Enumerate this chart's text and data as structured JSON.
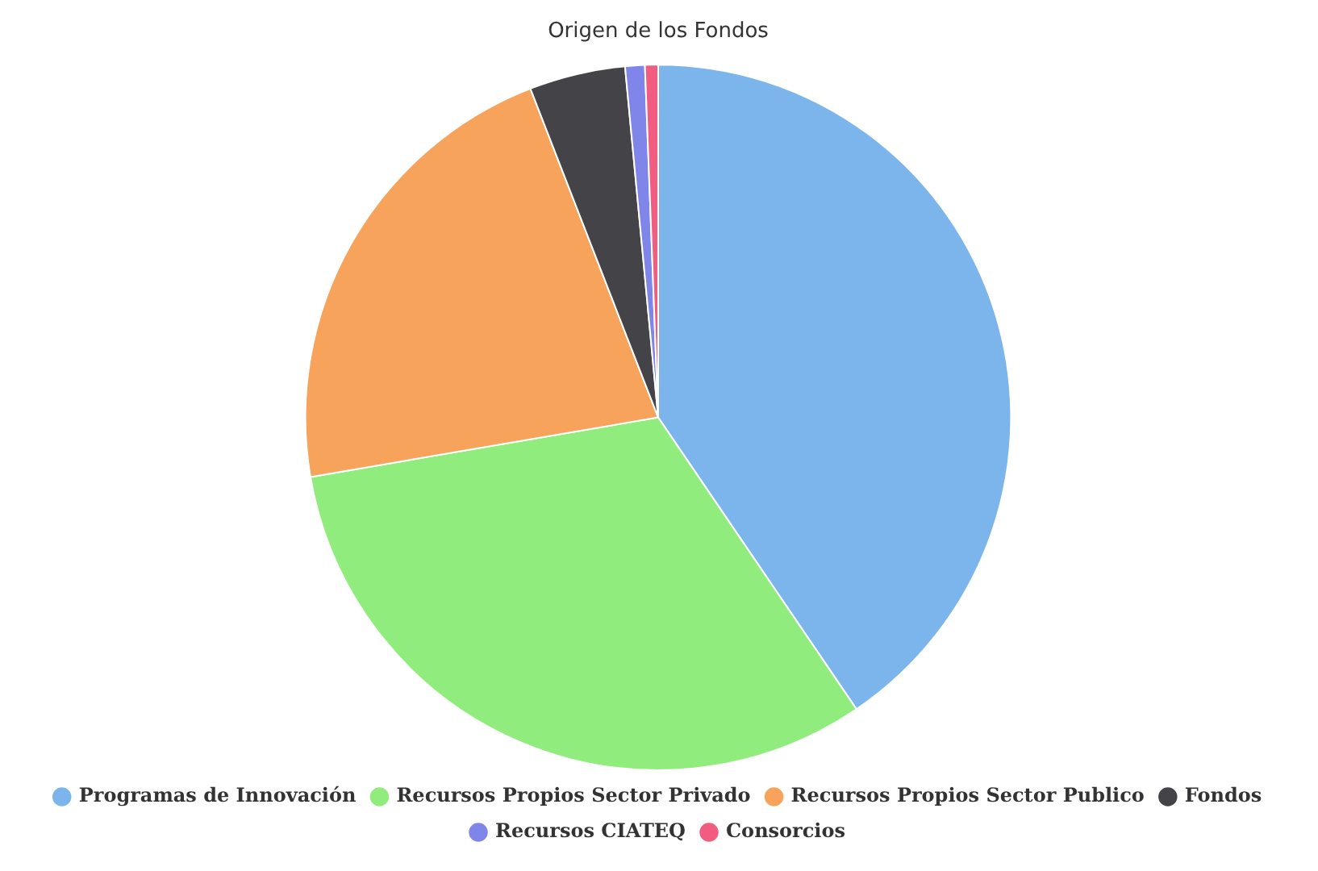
{
  "chart_data": {
    "type": "pie",
    "title": "Origen de los Fondos",
    "categories": [
      "Programas de Innovación",
      "Recursos Propios Sector Privado",
      "Recursos Propios Sector Publico",
      "Fondos",
      "Recursos CIATEQ",
      "Consorcios"
    ],
    "values": [
      40.5,
      31.8,
      21.8,
      4.4,
      0.9,
      0.6
    ],
    "colors": [
      "#7cb5ec",
      "#90ed7d",
      "#f7a35c",
      "#434348",
      "#8085e9",
      "#f15c80"
    ],
    "legend": "bottom"
  }
}
